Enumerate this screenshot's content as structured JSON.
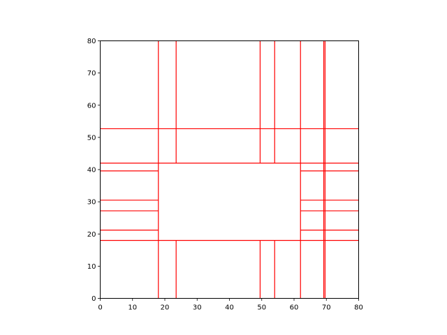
{
  "chart_data": {
    "type": "line",
    "xlim": [
      0,
      80
    ],
    "ylim": [
      0,
      80
    ],
    "x_ticks": [
      "0",
      "10",
      "20",
      "30",
      "40",
      "50",
      "60",
      "70",
      "80"
    ],
    "y_ticks": [
      "0",
      "10",
      "20",
      "30",
      "40",
      "50",
      "60",
      "70",
      "80"
    ],
    "grid": false,
    "line_color": "#ff0000",
    "segments": [
      {
        "x": [
          18,
          18
        ],
        "y": [
          0,
          80
        ]
      },
      {
        "x": [
          23.5,
          23.5
        ],
        "y": [
          0,
          18
        ]
      },
      {
        "x": [
          23.5,
          23.5
        ],
        "y": [
          42,
          80
        ]
      },
      {
        "x": [
          49.5,
          49.5
        ],
        "y": [
          0,
          18
        ]
      },
      {
        "x": [
          49.5,
          49.5
        ],
        "y": [
          42,
          80
        ]
      },
      {
        "x": [
          54,
          54
        ],
        "y": [
          0,
          18
        ]
      },
      {
        "x": [
          54,
          54
        ],
        "y": [
          42,
          80
        ]
      },
      {
        "x": [
          62,
          62
        ],
        "y": [
          0,
          80
        ]
      },
      {
        "x": [
          69.2,
          69.2
        ],
        "y": [
          0,
          80
        ]
      },
      {
        "x": [
          69.6,
          69.6
        ],
        "y": [
          0,
          80
        ]
      },
      {
        "x": [
          0,
          80
        ],
        "y": [
          52.7,
          52.7
        ]
      },
      {
        "x": [
          0,
          18
        ],
        "y": [
          42,
          42
        ]
      },
      {
        "x": [
          62,
          80
        ],
        "y": [
          42,
          42
        ]
      },
      {
        "x": [
          18,
          62
        ],
        "y": [
          42,
          42
        ]
      },
      {
        "x": [
          0,
          18
        ],
        "y": [
          39.6,
          39.6
        ]
      },
      {
        "x": [
          62,
          80
        ],
        "y": [
          39.6,
          39.6
        ]
      },
      {
        "x": [
          0,
          18
        ],
        "y": [
          30.5,
          30.5
        ]
      },
      {
        "x": [
          62,
          80
        ],
        "y": [
          30.5,
          30.5
        ]
      },
      {
        "x": [
          0,
          18
        ],
        "y": [
          27.2,
          27.2
        ]
      },
      {
        "x": [
          62,
          80
        ],
        "y": [
          27.2,
          27.2
        ]
      },
      {
        "x": [
          0,
          18
        ],
        "y": [
          21.2,
          21.2
        ]
      },
      {
        "x": [
          62,
          80
        ],
        "y": [
          21.2,
          21.2
        ]
      },
      {
        "x": [
          0,
          80
        ],
        "y": [
          18,
          18
        ]
      }
    ]
  }
}
